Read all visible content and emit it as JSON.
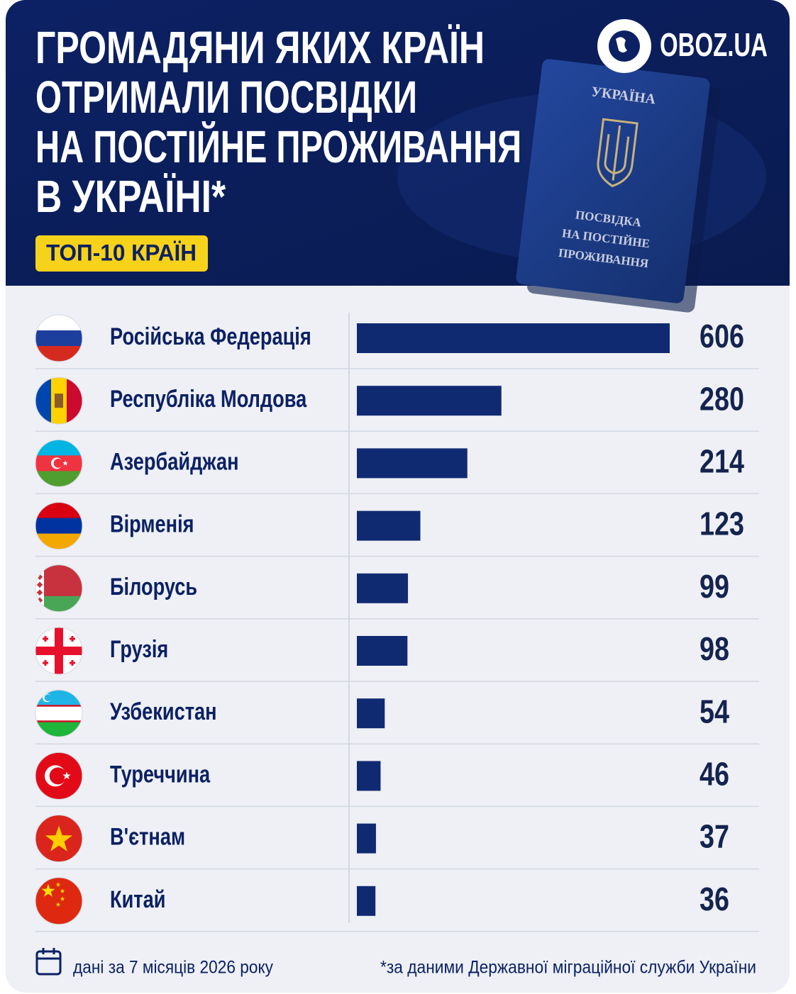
{
  "chart_data": {
    "type": "bar",
    "orientation": "horizontal",
    "title_lines": [
      "ГРОМАДЯНИ ЯКИХ КРАЇН",
      "ОТРИМАЛИ ПОСВІДКИ",
      "НА ПОСТІЙНЕ ПРОЖИВАННЯ",
      "В УКРАЇНІ*"
    ],
    "badge": "ТОП-10 КРАЇН",
    "categories": [
      "Російська Федерація",
      "Республіка Молдова",
      "Азербайджан",
      "Вірменія",
      "Білорусь",
      "Грузія",
      "Узбекистан",
      "Туреччина",
      "В'єтнам",
      "Китай"
    ],
    "values": [
      606,
      280,
      214,
      123,
      99,
      98,
      54,
      46,
      37,
      36
    ],
    "color": "#102a72",
    "period_note": "дані за 7 місяців 2026 року",
    "source_note": "*за даними Державної міграційної служби України"
  },
  "header": {
    "logo": "OBOZ.UA",
    "passport": {
      "country": "УКРАЇНА",
      "document_lines": [
        "ПОСВІДКА",
        "НА ПОСТІЙНЕ",
        "ПРОЖИВАННЯ"
      ]
    }
  }
}
